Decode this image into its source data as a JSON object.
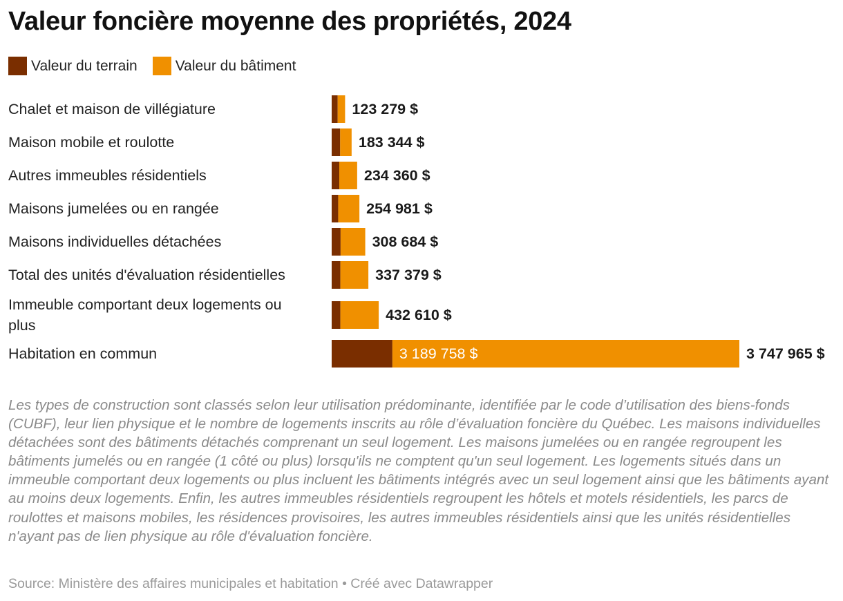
{
  "title": "Valeur foncière moyenne des propriétés, 2024",
  "legend": [
    {
      "label": "Valeur du terrain",
      "color": "#7a2e00"
    },
    {
      "label": "Valeur du bâtiment",
      "color": "#f09000"
    }
  ],
  "chart_data": {
    "type": "bar",
    "orientation": "horizontal",
    "stacked": true,
    "title": "Valeur foncière moyenne des propriétés, 2024",
    "categories": [
      [
        "Chalet et maison de villégiature"
      ],
      [
        "Maison mobile et roulotte"
      ],
      [
        "Autres immeubles résidentiels"
      ],
      [
        "Maisons jumelées ou en rangée"
      ],
      [
        "Maisons individuelles détachées"
      ],
      [
        "Total des unités d'évaluation résidentielles"
      ],
      [
        "Immeuble comportant deux logements ou",
        "plus"
      ],
      [
        "Habitation en commun"
      ]
    ],
    "series": [
      {
        "name": "Valeur du terrain",
        "color": "#7a2e00",
        "values": [
          55000,
          78000,
          70000,
          60000,
          82000,
          80000,
          80000,
          558207
        ]
      },
      {
        "name": "Valeur du bâtiment",
        "color": "#f09000",
        "values": [
          68279,
          105344,
          164360,
          194981,
          226684,
          257379,
          352610,
          3189758
        ]
      }
    ],
    "totals": [
      123279,
      183344,
      234360,
      254981,
      308684,
      337379,
      432610,
      3747965
    ],
    "total_labels": [
      "123 279 $",
      "183 344 $",
      "234 360 $",
      "254 981 $",
      "308 684 $",
      "337 379 $",
      "432 610 $",
      "3 747 965 $"
    ],
    "inner_labels": [
      "",
      "",
      "",
      "",
      "",
      "",
      "",
      "3 189 758 $"
    ],
    "xlim": [
      0,
      3747965
    ]
  },
  "notes": "Les types de construction sont classés selon leur utilisation prédominante, identifiée par le code d’utilisation des biens-fonds (CUBF), leur lien physique et le nombre de logements inscrits au rôle d’évaluation foncière du Québec. Les maisons individuelles détachées sont des bâtiments détachés comprenant un seul logement. Les maisons jumelées ou en rangée regroupent les bâtiments jumelés ou en rangée (1 côté ou plus) lorsqu'ils ne comptent qu'un seul logement. Les logements situés dans un immeuble comportant deux logements ou plus incluent les bâtiments intégrés avec un seul logement ainsi que les bâtiments ayant au moins deux logements. Enfin, les autres immeubles résidentiels regroupent les hôtels et motels résidentiels, les parcs de roulottes et maisons mobiles, les résidences provisoires, les autres immeubles résidentiels ainsi que les unités résidentielles n'ayant pas de lien physique au rôle d'évaluation foncière.",
  "source": "Source: Ministère des affaires municipales et habitation • Créé avec Datawrapper"
}
